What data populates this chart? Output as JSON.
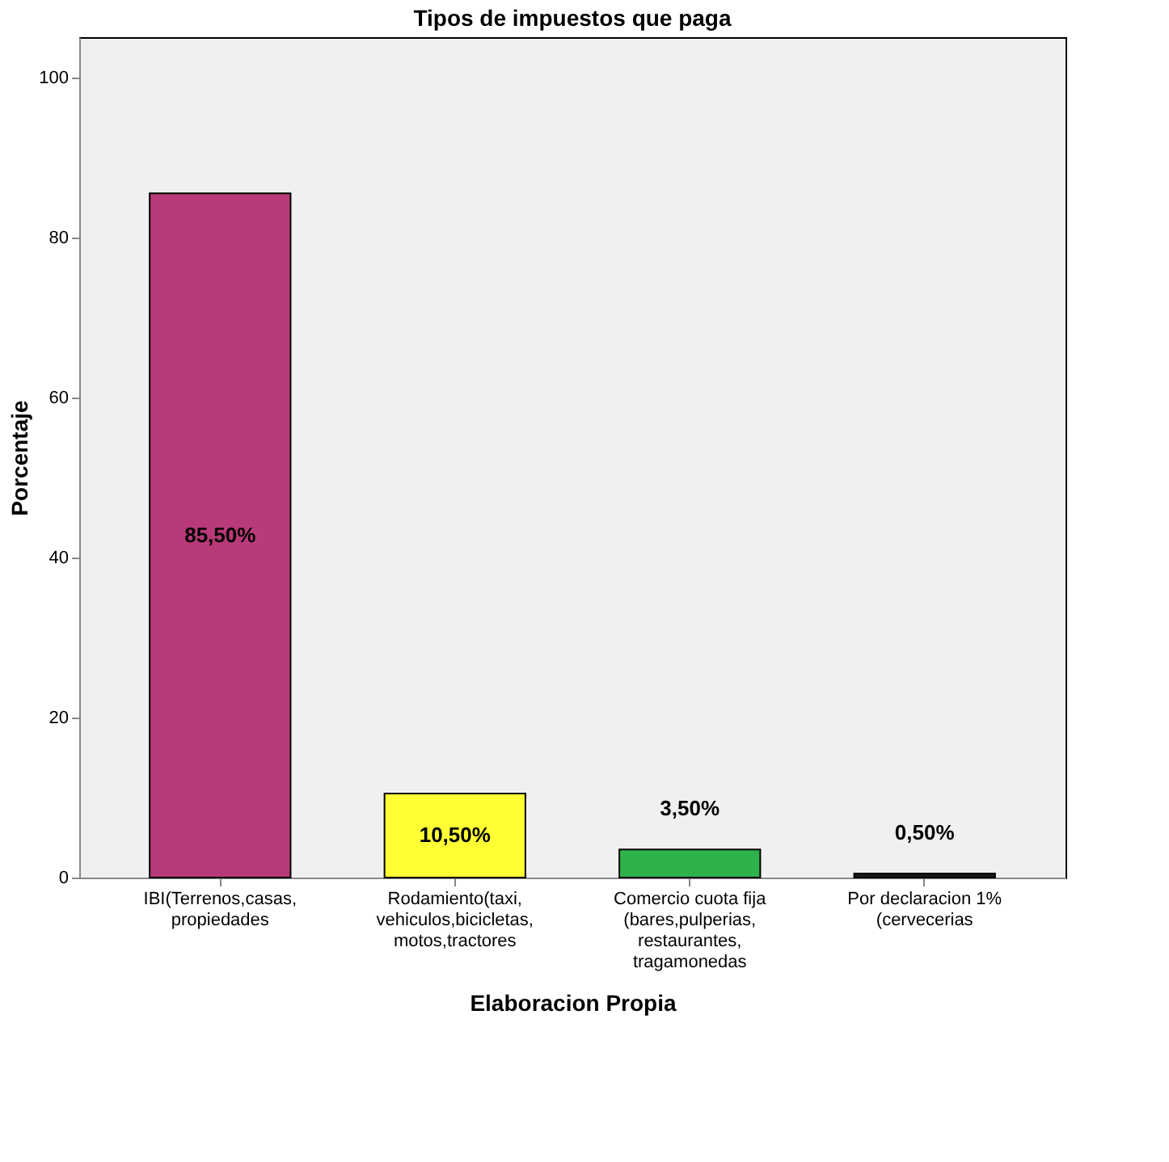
{
  "chart_data": {
    "type": "bar",
    "title": "Tipos de impuestos que paga",
    "xlabel": "Elaboracion Propia",
    "ylabel": "Porcentaje",
    "categories": [
      "IBI(Terrenos,casas, propiedades",
      "Rodamiento(taxi, vehiculos,bicicletas, motos,tractores",
      "Comercio cuota fija (bares,pulperias, restaurantes, tragamonedas",
      "Por declaracion 1% (cervecerias"
    ],
    "values": [
      85.5,
      10.5,
      3.5,
      0.5
    ],
    "colors": [
      "#b93a78",
      "#ffff33",
      "#2db34a",
      "#1a1a1a"
    ],
    "value_labels": [
      "85,50%",
      "10,50%",
      "3,50%",
      "0,50%"
    ],
    "ylim": [
      0,
      105
    ],
    "yticks": [
      0,
      20,
      40,
      60,
      80,
      100
    ],
    "grid": false
  }
}
